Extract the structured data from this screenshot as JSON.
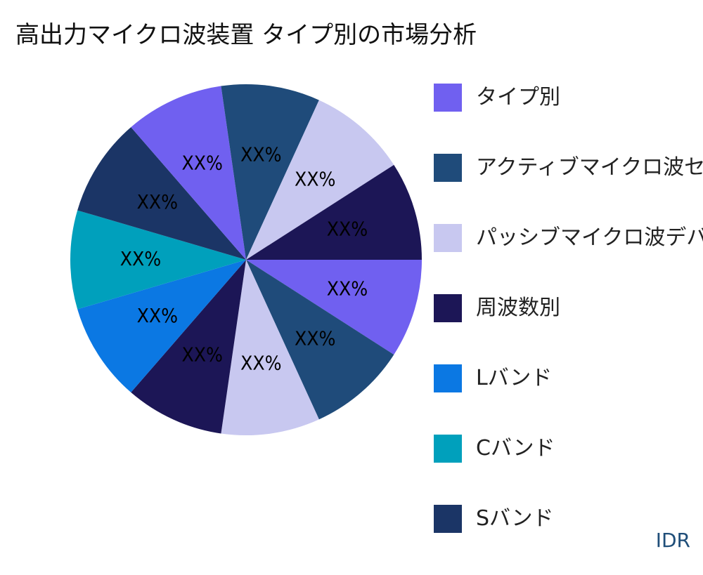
{
  "chart_data": {
    "type": "pie",
    "title": "高出力マイクロ波装置 タイプ別の市場分析",
    "slices": [
      {
        "label": "XX%",
        "value": 10,
        "color": "#7060f0"
      },
      {
        "label": "XX%",
        "value": 10,
        "color": "#1f4b7a"
      },
      {
        "label": "XX%",
        "value": 10,
        "color": "#c8c8f0"
      },
      {
        "label": "XX%",
        "value": 10,
        "color": "#1c1656"
      },
      {
        "label": "XX%",
        "value": 10,
        "color": "#0b78e3"
      },
      {
        "label": "XX%",
        "value": 10,
        "color": "#00a0bc"
      },
      {
        "label": "XX%",
        "value": 10,
        "color": "#1b3566"
      },
      {
        "label": "XX%",
        "value": 10,
        "color": "#7060f0"
      },
      {
        "label": "XX%",
        "value": 10,
        "color": "#1f4b7a"
      },
      {
        "label": "XX%",
        "value": 10,
        "color": "#c8c8f0"
      },
      {
        "label": "XX%",
        "value": 10,
        "color": "#1c1656"
      }
    ],
    "legend": [
      {
        "label": "タイプ別",
        "color": "#7060f0"
      },
      {
        "label": "アクティブマイクロ波センサー",
        "color": "#1f4b7a"
      },
      {
        "label": "パッシブマイクロ波デバイス",
        "color": "#c8c8f0"
      },
      {
        "label": "周波数別",
        "color": "#1c1656"
      },
      {
        "label": "Lバンド",
        "color": "#0b78e3"
      },
      {
        "label": "Cバンド",
        "color": "#00a0bc"
      },
      {
        "label": "Sバンド",
        "color": "#1b3566"
      }
    ],
    "legend_position": "right"
  },
  "brand": "IDR"
}
